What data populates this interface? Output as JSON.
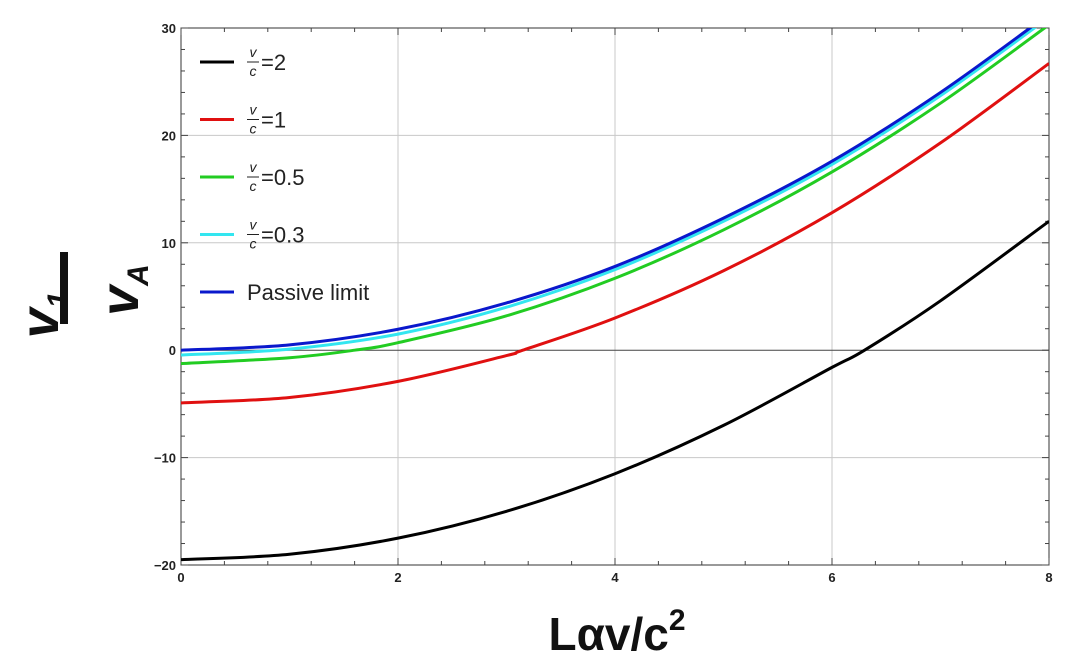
{
  "chart_data": {
    "type": "line",
    "xlabel_main": "Lαv/c",
    "xlabel_sup": "2",
    "ylabel_num_main": "v",
    "ylabel_num_sub": "1",
    "ylabel_den_main": "v",
    "ylabel_den_sub": "A",
    "xlim": [
      0,
      8
    ],
    "ylim": [
      -20,
      30
    ],
    "x_ticks": [
      0,
      2,
      4,
      6,
      8
    ],
    "y_ticks": [
      -20,
      -10,
      0,
      10,
      20,
      30
    ],
    "x_tick_labels": [
      "0",
      "2",
      "4",
      "6",
      "8"
    ],
    "y_tick_labels": [
      "−20",
      "−10",
      "0",
      "10",
      "20",
      "30"
    ],
    "grid": true,
    "legend_position": "top-left",
    "series": [
      {
        "name": "=2",
        "frac_num": "v",
        "frac_den": "c",
        "color": "#000000",
        "x": [
          0,
          1,
          2,
          3,
          4,
          5,
          6,
          6.3,
          7,
          8
        ],
        "y": [
          -19.5,
          -19.0,
          -17.5,
          -15.0,
          -11.5,
          -7.0,
          -1.6,
          0.0,
          4.6,
          12.0
        ]
      },
      {
        "name": "=1",
        "frac_num": "v",
        "frac_den": "c",
        "color": "#e01010",
        "x": [
          0,
          1,
          2,
          3,
          3.15,
          4,
          5,
          6,
          7,
          8
        ],
        "y": [
          -4.9,
          -4.4,
          -2.9,
          -0.5,
          0.0,
          3.0,
          7.4,
          12.8,
          19.3,
          26.7
        ]
      },
      {
        "name": "=0.5",
        "frac_num": "v",
        "frac_den": "c",
        "color": "#22cc22",
        "x": [
          0,
          1,
          1.6,
          2,
          3,
          4,
          5,
          6,
          7,
          8
        ],
        "y": [
          -1.25,
          -0.7,
          0.0,
          0.7,
          3.2,
          6.7,
          11.2,
          16.6,
          23.0,
          30.3
        ]
      },
      {
        "name": "=0.3",
        "frac_num": "v",
        "frac_den": "c",
        "color": "#33e6f0",
        "x": [
          0,
          1,
          2,
          3,
          4,
          5,
          6,
          7,
          8
        ],
        "y": [
          -0.45,
          0.1,
          1.5,
          4.0,
          7.5,
          12.0,
          17.3,
          23.7,
          31.0
        ]
      },
      {
        "name": "Passive limit",
        "frac_num": "",
        "frac_den": "",
        "color": "#0a18cc",
        "x": [
          0,
          1,
          2,
          3,
          4,
          5,
          6,
          7,
          8
        ],
        "y": [
          0.0,
          0.5,
          1.95,
          4.4,
          7.8,
          12.3,
          17.6,
          24.0,
          31.3
        ]
      }
    ]
  }
}
